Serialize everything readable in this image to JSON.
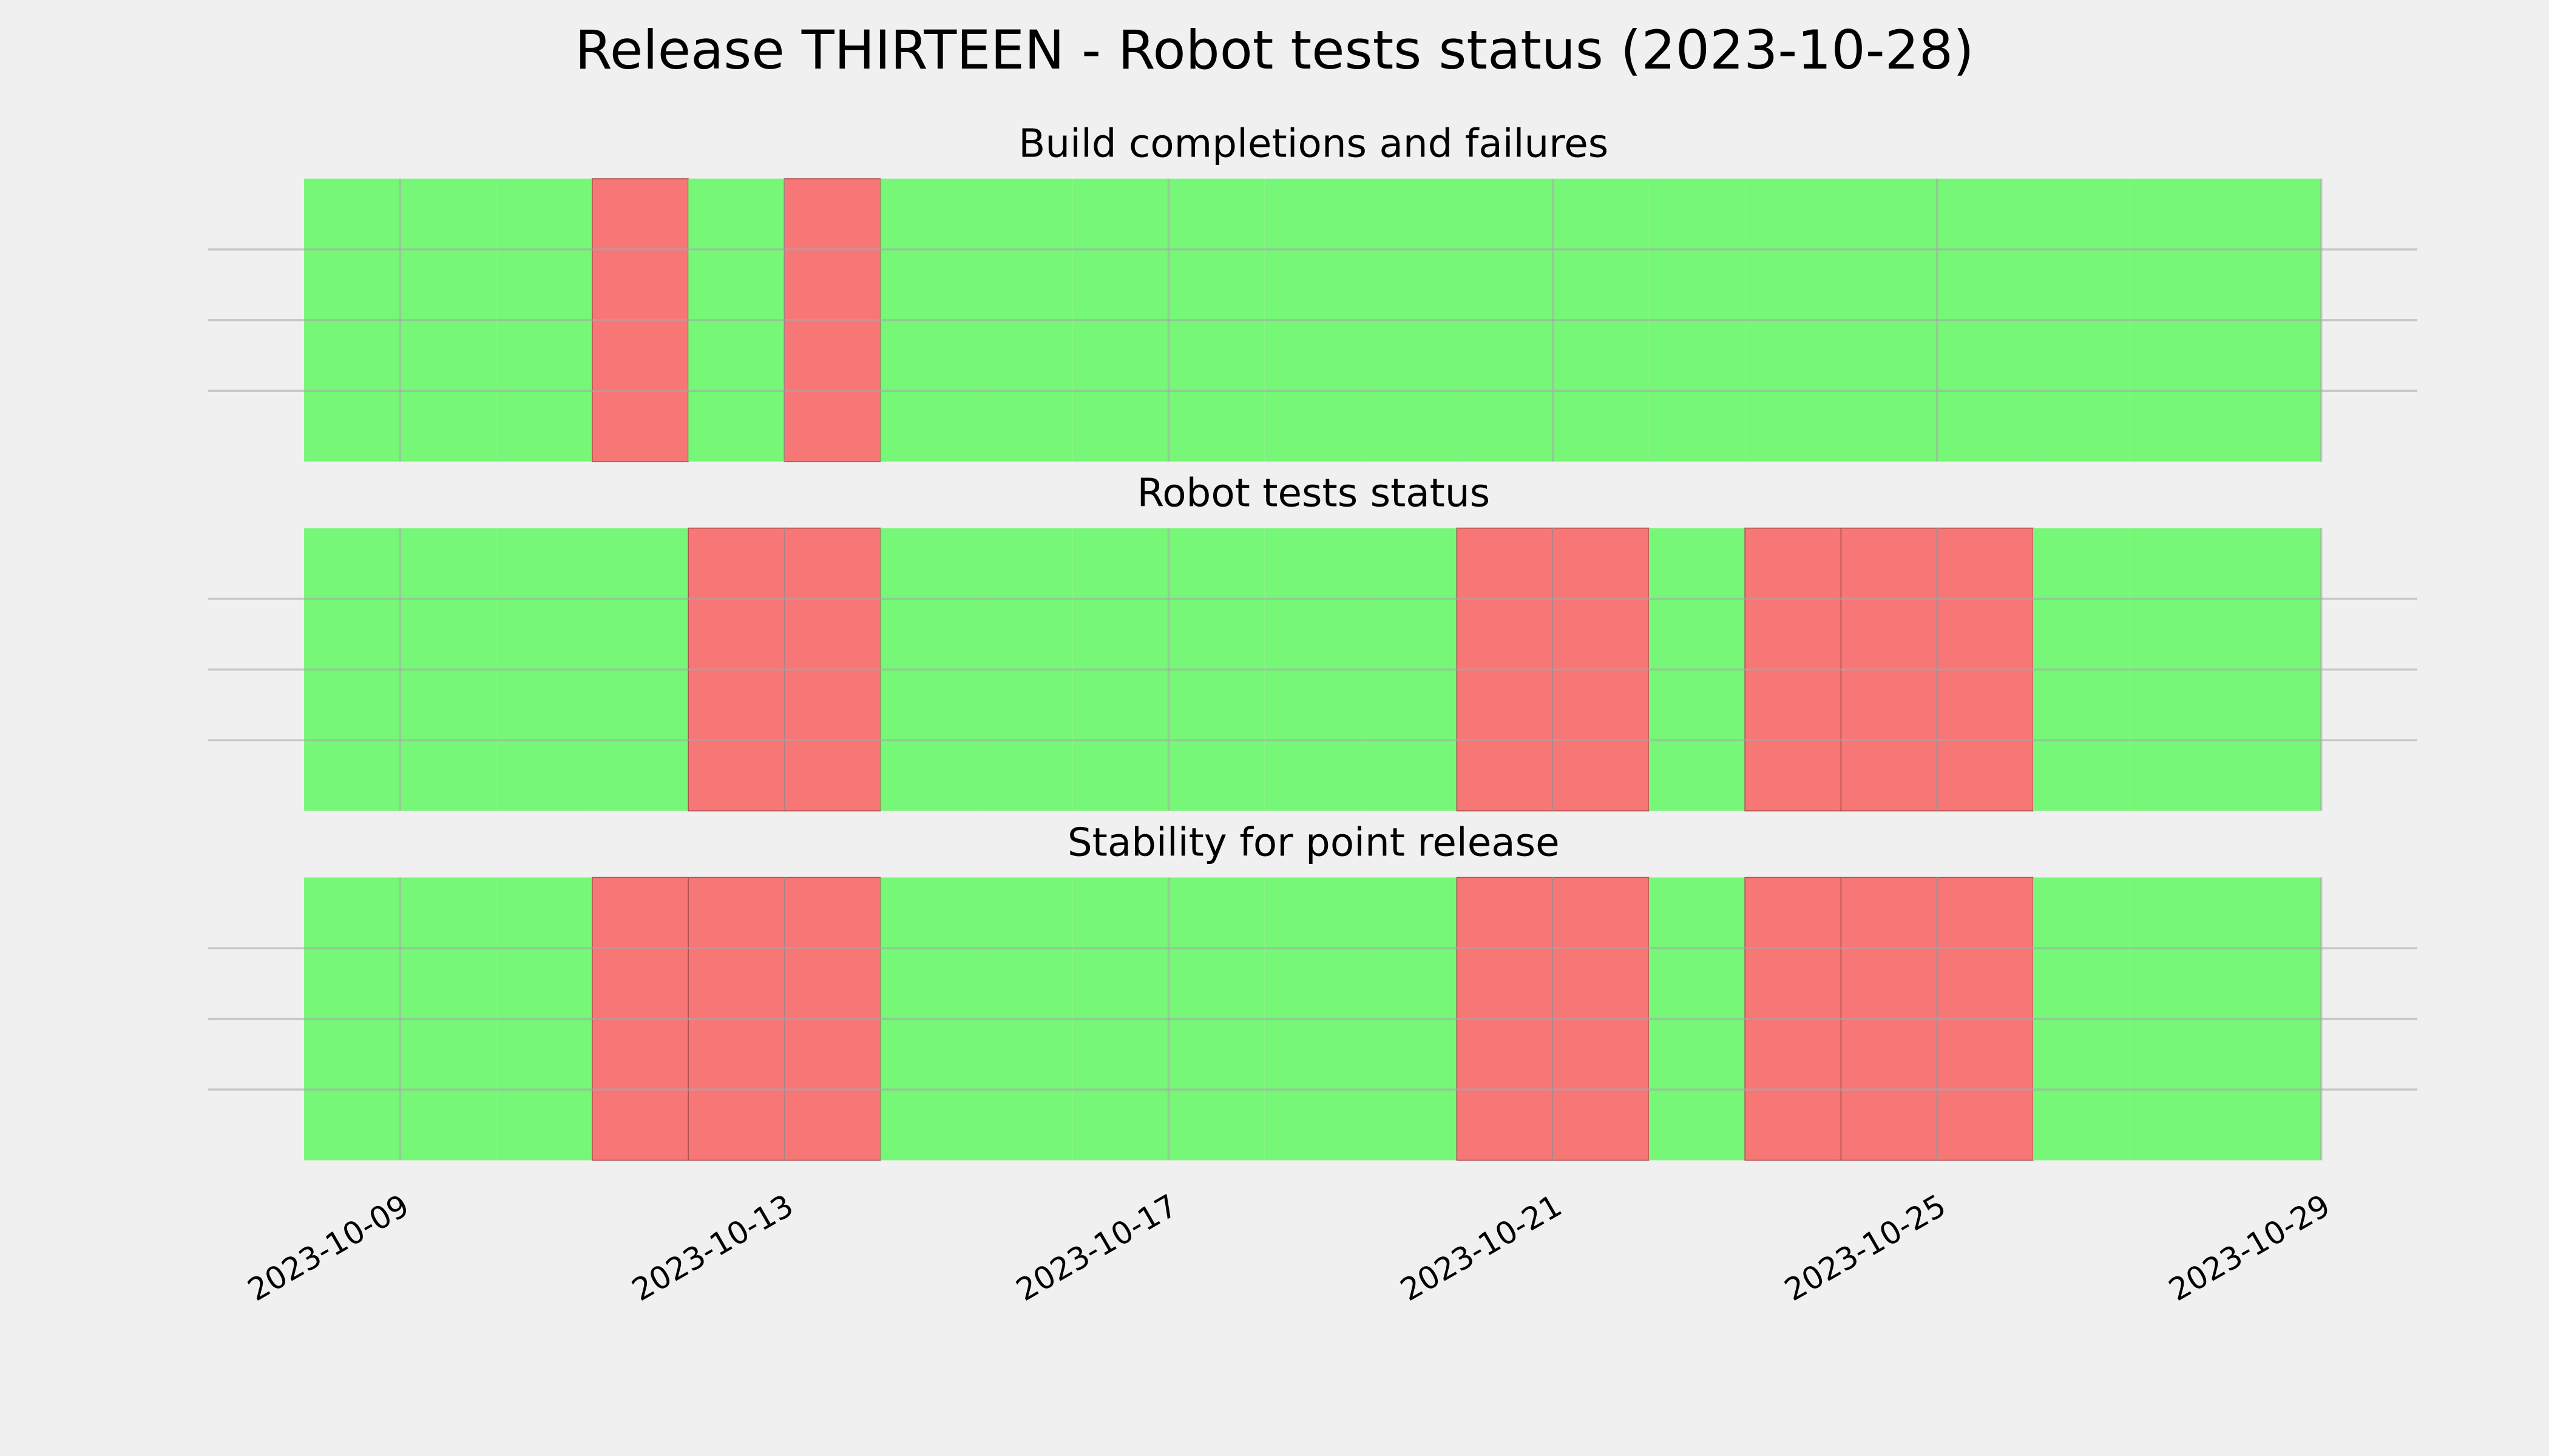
{
  "title": "Release THIRTEEN - Robot tests status (2023-10-28)",
  "chart_data": [
    {
      "type": "status-timeline",
      "title": "Build completions and failures",
      "x": [
        "2023-10-08",
        "2023-10-09",
        "2023-10-10",
        "2023-10-11",
        "2023-10-12",
        "2023-10-13",
        "2023-10-14",
        "2023-10-15",
        "2023-10-16",
        "2023-10-17",
        "2023-10-18",
        "2023-10-19",
        "2023-10-20",
        "2023-10-21",
        "2023-10-22",
        "2023-10-23",
        "2023-10-24",
        "2023-10-25",
        "2023-10-26",
        "2023-10-27",
        "2023-10-28"
      ],
      "values": [
        1,
        1,
        1,
        0,
        1,
        0,
        1,
        1,
        1,
        1,
        1,
        1,
        1,
        1,
        1,
        1,
        1,
        1,
        1,
        1,
        1
      ],
      "pass_color": "#77f777",
      "fail_color": "#f77777",
      "xlim": [
        "2023-10-07",
        "2023-10-30"
      ],
      "xticks": [
        "2023-10-09",
        "2023-10-13",
        "2023-10-17",
        "2023-10-21",
        "2023-10-25",
        "2023-10-29"
      ],
      "ylim": [
        0,
        1
      ],
      "yticks": [
        0.25,
        0.5,
        0.75
      ],
      "grid": true
    },
    {
      "type": "status-timeline",
      "title": "Robot tests status",
      "x": [
        "2023-10-08",
        "2023-10-09",
        "2023-10-10",
        "2023-10-11",
        "2023-10-12",
        "2023-10-13",
        "2023-10-14",
        "2023-10-15",
        "2023-10-16",
        "2023-10-17",
        "2023-10-18",
        "2023-10-19",
        "2023-10-20",
        "2023-10-21",
        "2023-10-22",
        "2023-10-23",
        "2023-10-24",
        "2023-10-25",
        "2023-10-26",
        "2023-10-27",
        "2023-10-28"
      ],
      "values": [
        1,
        1,
        1,
        1,
        0,
        0,
        1,
        1,
        1,
        1,
        1,
        1,
        0,
        0,
        1,
        0,
        0,
        0,
        1,
        1,
        1
      ],
      "pass_color": "#77f777",
      "fail_color": "#f77777",
      "xlim": [
        "2023-10-07",
        "2023-10-30"
      ],
      "xticks": [
        "2023-10-09",
        "2023-10-13",
        "2023-10-17",
        "2023-10-21",
        "2023-10-25",
        "2023-10-29"
      ],
      "ylim": [
        0,
        1
      ],
      "yticks": [
        0.25,
        0.5,
        0.75
      ],
      "grid": true
    },
    {
      "type": "status-timeline",
      "title": "Stability for point release",
      "x": [
        "2023-10-08",
        "2023-10-09",
        "2023-10-10",
        "2023-10-11",
        "2023-10-12",
        "2023-10-13",
        "2023-10-14",
        "2023-10-15",
        "2023-10-16",
        "2023-10-17",
        "2023-10-18",
        "2023-10-19",
        "2023-10-20",
        "2023-10-21",
        "2023-10-22",
        "2023-10-23",
        "2023-10-24",
        "2023-10-25",
        "2023-10-26",
        "2023-10-27",
        "2023-10-28"
      ],
      "values": [
        1,
        1,
        1,
        0,
        0,
        0,
        1,
        1,
        1,
        1,
        1,
        1,
        0,
        0,
        1,
        0,
        0,
        0,
        1,
        1,
        1
      ],
      "pass_color": "#77f777",
      "fail_color": "#f77777",
      "xlim": [
        "2023-10-07",
        "2023-10-30"
      ],
      "xticks": [
        "2023-10-09",
        "2023-10-13",
        "2023-10-17",
        "2023-10-21",
        "2023-10-25",
        "2023-10-29"
      ],
      "ylim": [
        0,
        1
      ],
      "yticks": [
        0.25,
        0.5,
        0.75
      ],
      "grid": true
    }
  ]
}
